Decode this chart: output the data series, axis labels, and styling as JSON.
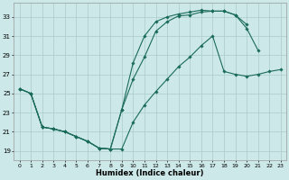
{
  "xlabel": "Humidex (Indice chaleur)",
  "bg_color": "#cce8e8",
  "grid_color": "#aacccc",
  "line_color": "#1a6b5a",
  "xlim": [
    -0.5,
    23.5
  ],
  "ylim": [
    18.0,
    34.5
  ],
  "yticks": [
    19,
    21,
    23,
    25,
    27,
    29,
    31,
    33
  ],
  "xticks": [
    0,
    1,
    2,
    3,
    4,
    5,
    6,
    7,
    8,
    9,
    10,
    11,
    12,
    13,
    14,
    15,
    16,
    17,
    18,
    19,
    20,
    21,
    22,
    23
  ],
  "line1_x": [
    0,
    1,
    2,
    3,
    4,
    5,
    6,
    7,
    8,
    9,
    10,
    11,
    12,
    13,
    14,
    15,
    16,
    17,
    18,
    19,
    20,
    21
  ],
  "line1_y": [
    25.5,
    25.0,
    21.5,
    21.3,
    21.0,
    20.5,
    20.0,
    19.3,
    19.2,
    23.3,
    28.2,
    31.0,
    32.5,
    33.0,
    33.3,
    33.5,
    33.7,
    33.6,
    33.6,
    33.2,
    31.8,
    29.5
  ],
  "line2_x": [
    0,
    1,
    2,
    3,
    4,
    5,
    6,
    7,
    8,
    9,
    10,
    11,
    12,
    13,
    14,
    15,
    16,
    17,
    18,
    19,
    20
  ],
  "line2_y": [
    25.5,
    25.0,
    21.5,
    21.3,
    21.0,
    20.5,
    20.0,
    19.3,
    19.2,
    23.3,
    26.5,
    28.8,
    31.5,
    32.5,
    33.1,
    33.2,
    33.5,
    33.6,
    33.6,
    33.2,
    32.2
  ],
  "line3_x": [
    0,
    1,
    2,
    3,
    4,
    5,
    6,
    7,
    8,
    9,
    10,
    11,
    12,
    13,
    14,
    15,
    16,
    17,
    18,
    19,
    20,
    21,
    22,
    23
  ],
  "line3_y": [
    25.5,
    25.0,
    21.5,
    21.3,
    21.0,
    20.5,
    20.0,
    19.3,
    19.2,
    19.2,
    22.0,
    23.8,
    25.2,
    26.5,
    27.8,
    28.8,
    30.0,
    31.0,
    27.3,
    27.0,
    26.8,
    27.0,
    27.3,
    27.5
  ]
}
